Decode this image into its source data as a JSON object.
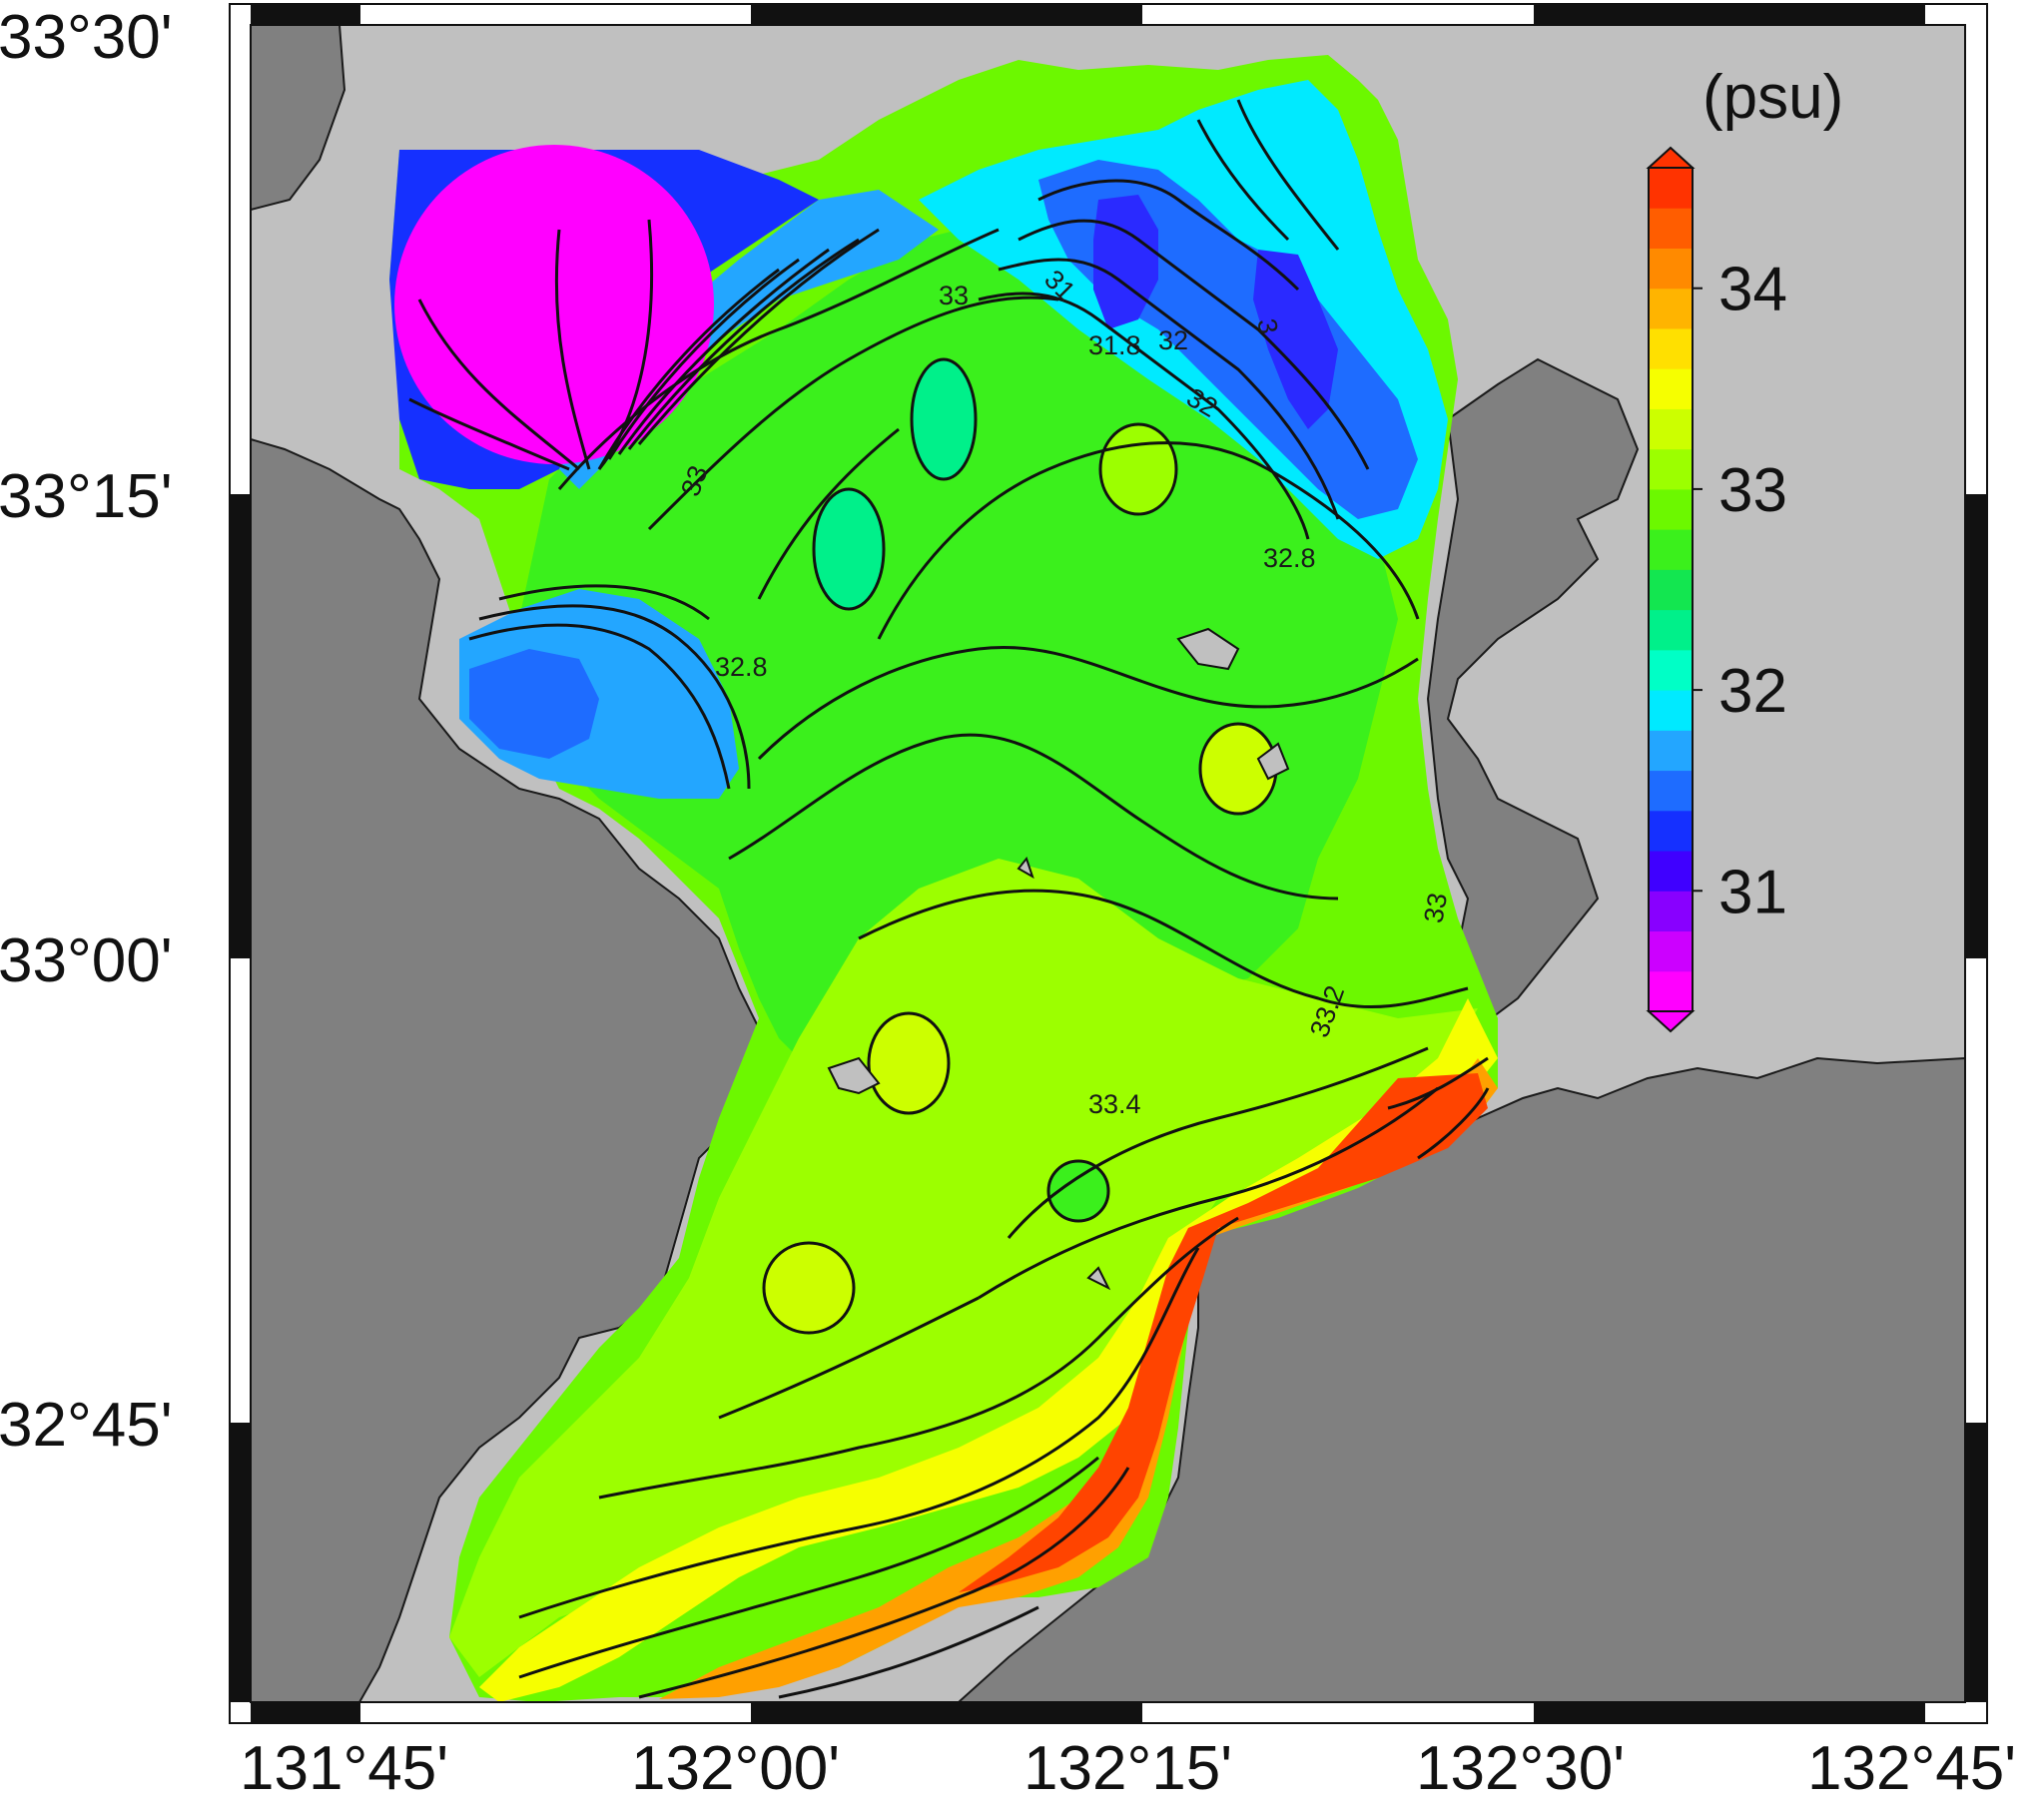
{
  "map": {
    "lat_labels": [
      "33°30'",
      "33°15'",
      "33°00'",
      "32°45'"
    ],
    "lon_labels": [
      "131°45'",
      "132°00'",
      "132°15'",
      "132°30'",
      "132°45'"
    ],
    "land_color_light": "#c0c0c0",
    "land_color_dark": "#808080"
  },
  "colorbar": {
    "unit": "(psu)",
    "ticks": [
      "34",
      "33",
      "32",
      "31"
    ],
    "range": [
      30.4,
      34.6
    ],
    "colors": [
      "#ff00ff",
      "#cc00ff",
      "#8800ff",
      "#3f00ff",
      "#1530ff",
      "#1e6cff",
      "#23a6ff",
      "#00eaff",
      "#00ffc6",
      "#00f08a",
      "#13e650",
      "#3bf01c",
      "#6cf800",
      "#9cff00",
      "#ccff00",
      "#f6ff00",
      "#ffe000",
      "#ffb400",
      "#ff8a00",
      "#ff5d00",
      "#ff3300"
    ]
  },
  "contour_labels": [
    "33",
    "33",
    "31",
    "31.8",
    "32",
    "32",
    "3",
    "32.8",
    "32.8",
    "33",
    "33.2",
    "33.4"
  ]
}
